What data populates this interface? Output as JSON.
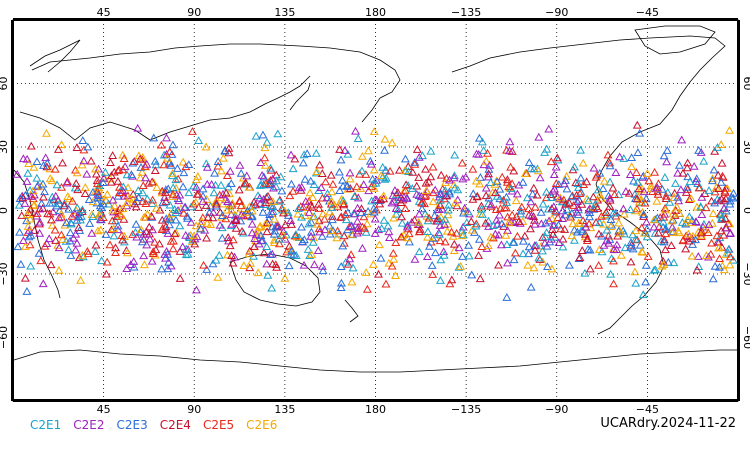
{
  "map": {
    "top_longitude_labels": [
      "45",
      "90",
      "135",
      "180",
      "−135",
      "−90",
      "−45"
    ],
    "bottom_longitude_labels": [
      "45",
      "90",
      "135",
      "180",
      "−135",
      "−90",
      "−45"
    ],
    "latitude_labels": [
      "60",
      "30",
      "0",
      "−30",
      "−60"
    ],
    "grid": true,
    "projection": "cylindrical, centered on 180"
  },
  "legend": {
    "items": [
      {
        "label": "C2E1",
        "color": "#1aa3c8"
      },
      {
        "label": "C2E2",
        "color": "#a020c0"
      },
      {
        "label": "C2E3",
        "color": "#2a6ed8"
      },
      {
        "label": "C2E4",
        "color": "#c8102e"
      },
      {
        "label": "C2E5",
        "color": "#e8281a"
      },
      {
        "label": "C2E6",
        "color": "#f5a800"
      }
    ]
  },
  "footer": {
    "product_label": "UCARdry.2024-11-22"
  },
  "observations": {
    "marker_shape": "triangle",
    "latitude_extent_deg": [
      -45,
      45
    ]
  }
}
